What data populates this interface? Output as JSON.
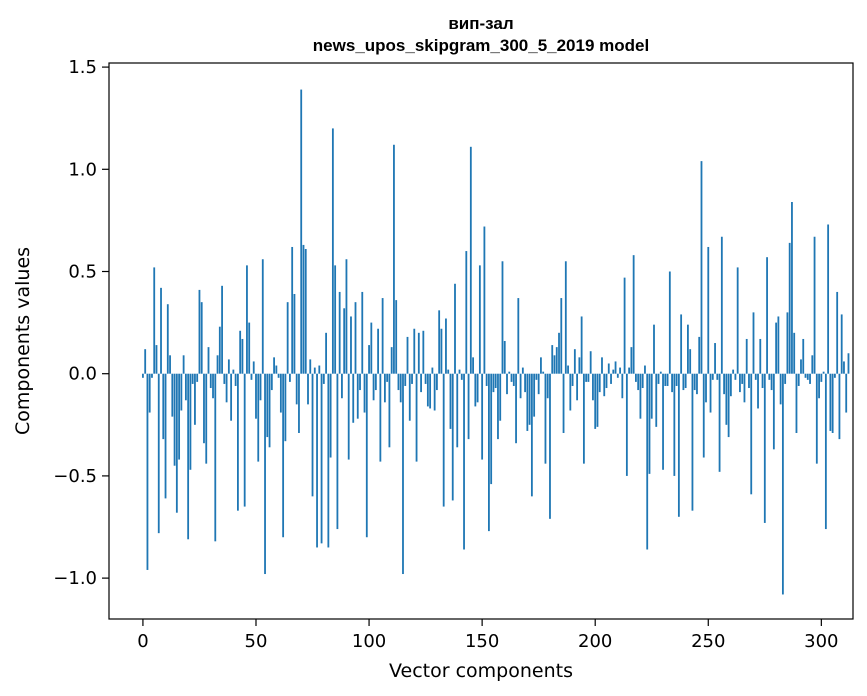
{
  "chart_data": {
    "type": "bar",
    "title_line1": "вип-зал",
    "title_line2": "news_upos_skipgram_300_5_2019 model",
    "xlabel": "Vector components",
    "ylabel": "Components values",
    "xlim": [
      -15,
      314
    ],
    "ylim": [
      -1.2,
      1.52
    ],
    "x_ticks": [
      0,
      50,
      100,
      150,
      200,
      250,
      300
    ],
    "x_tick_labels": [
      "0",
      "50",
      "100",
      "150",
      "200",
      "250",
      "300"
    ],
    "y_ticks": [
      -1.0,
      -0.5,
      0.0,
      0.5,
      1.0,
      1.5
    ],
    "y_tick_labels": [
      "−1.0",
      "−0.5",
      "0.0",
      "0.5",
      "1.0",
      "1.5"
    ],
    "bar_color": "#1f77b4",
    "grid": false,
    "values": [
      -0.02,
      0.12,
      -0.96,
      -0.19,
      -0.02,
      0.52,
      0.14,
      -0.78,
      0.42,
      -0.32,
      -0.61,
      0.34,
      0.09,
      -0.21,
      -0.45,
      -0.68,
      -0.42,
      -0.18,
      0.09,
      -0.13,
      -0.81,
      -0.47,
      -0.05,
      -0.25,
      -0.04,
      0.41,
      0.35,
      -0.34,
      -0.44,
      0.13,
      -0.07,
      -0.12,
      -0.82,
      0.09,
      0.23,
      0.43,
      -0.05,
      -0.14,
      0.07,
      -0.23,
      0.02,
      -0.06,
      -0.67,
      0.21,
      0.17,
      -0.65,
      0.53,
      0.25,
      -0.03,
      0.06,
      -0.22,
      -0.43,
      -0.13,
      0.56,
      -0.98,
      -0.31,
      -0.36,
      -0.08,
      0.08,
      0.04,
      -0.02,
      -0.19,
      -0.8,
      -0.33,
      0.35,
      -0.04,
      0.62,
      0.39,
      -0.15,
      -0.29,
      1.39,
      0.63,
      0.61,
      -0.15,
      0.07,
      -0.6,
      0.03,
      -0.85,
      0.04,
      -0.83,
      -0.05,
      0.2,
      -0.85,
      -0.41,
      1.2,
      0.53,
      -0.76,
      0.4,
      -0.12,
      0.32,
      0.56,
      -0.42,
      0.28,
      -0.24,
      0.35,
      -0.22,
      -0.08,
      0.4,
      -0.19,
      -0.8,
      0.14,
      0.25,
      -0.13,
      -0.08,
      0.22,
      -0.43,
      0.37,
      -0.14,
      -0.04,
      -0.36,
      0.13,
      1.12,
      0.36,
      -0.08,
      -0.14,
      -0.98,
      -0.06,
      0.18,
      -0.23,
      -0.05,
      0.22,
      -0.43,
      0.2,
      -0.09,
      0.21,
      -0.05,
      -0.16,
      -0.17,
      0.03,
      -0.18,
      -0.08,
      0.31,
      0.22,
      -0.65,
      0.27,
      0.02,
      -0.27,
      -0.62,
      0.44,
      -0.36,
      0.02,
      -0.03,
      -0.86,
      0.6,
      -0.32,
      1.11,
      0.08,
      -0.16,
      -0.14,
      0.53,
      -0.42,
      0.72,
      -0.06,
      -0.77,
      -0.54,
      -0.09,
      -0.07,
      -0.32,
      -0.23,
      0.55,
      0.16,
      -0.1,
      0.01,
      -0.04,
      -0.06,
      -0.34,
      0.37,
      -0.12,
      0.03,
      -0.09,
      -0.28,
      -0.25,
      -0.6,
      -0.21,
      -0.03,
      -0.1,
      0.08,
      0.01,
      -0.44,
      -0.12,
      -0.71,
      0.14,
      0.09,
      0.13,
      0.2,
      0.37,
      -0.29,
      0.55,
      0.04,
      -0.18,
      -0.06,
      0.12,
      -0.13,
      0.08,
      0.28,
      -0.44,
      -0.04,
      -0.04,
      0.11,
      -0.13,
      -0.27,
      -0.26,
      -0.09,
      0.08,
      -0.11,
      -0.07,
      0.05,
      -0.05,
      0.02,
      0.06,
      -0.02,
      0.03,
      -0.12,
      0.47,
      -0.5,
      0.03,
      0.13,
      0.58,
      -0.04,
      -0.08,
      -0.22,
      -0.07,
      0.04,
      -0.86,
      -0.49,
      -0.22,
      0.24,
      -0.26,
      -0.05,
      0.01,
      -0.47,
      -0.06,
      -0.06,
      0.5,
      -0.09,
      -0.5,
      -0.06,
      -0.7,
      0.29,
      -0.08,
      -0.07,
      0.24,
      0.12,
      -0.67,
      -0.08,
      -0.1,
      0.18,
      1.04,
      -0.41,
      -0.14,
      0.62,
      -0.19,
      -0.03,
      0.15,
      -0.03,
      -0.48,
      0.67,
      -0.1,
      -0.25,
      -0.31,
      -0.11,
      0.02,
      -0.03,
      0.52,
      -0.09,
      -0.05,
      -0.14,
      0.17,
      -0.07,
      -0.59,
      0.3,
      -0.03,
      -0.17,
      0.17,
      -0.07,
      -0.73,
      0.57,
      -0.03,
      -0.08,
      -0.37,
      0.25,
      0.28,
      -0.15,
      -1.08,
      -0.05,
      0.3,
      0.64,
      0.84,
      0.2,
      -0.29,
      -0.06,
      0.07,
      0.17,
      -0.02,
      -0.03,
      -0.05,
      0.09,
      0.67,
      -0.44,
      -0.12,
      -0.04,
      0.01,
      -0.76,
      0.73,
      -0.28,
      -0.29,
      -0.02,
      0.4,
      -0.32,
      0.29,
      0.06,
      -0.19,
      0.1
    ]
  }
}
